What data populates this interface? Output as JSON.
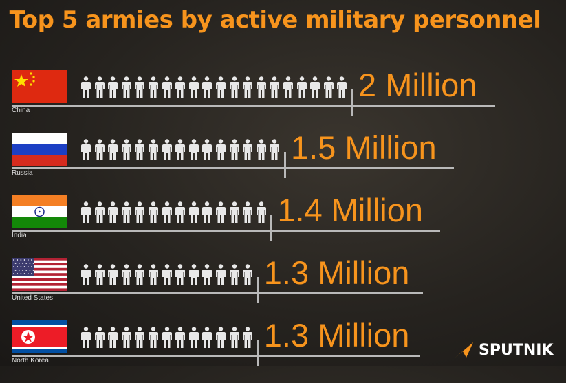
{
  "chart_data": {
    "type": "pictograph",
    "title": "Top 5 armies by active military personnel",
    "unit_per_icon_millions": 0.1,
    "categories": [
      "China",
      "Russia",
      "India",
      "United States",
      "North Korea"
    ],
    "values_millions": [
      2,
      1.5,
      1.4,
      1.3,
      1.3
    ],
    "value_labels": [
      "2 Million",
      "1.5 Million",
      "1.4 Million",
      "1.3 Million",
      "1.3 Million"
    ],
    "colors": {
      "accent": "#f7941d",
      "icon": "#e8e8e8",
      "line": "#b9b9b9"
    }
  },
  "flags": [
    "china-flag",
    "russia-flag",
    "india-flag",
    "united-states-flag",
    "north-korea-flag"
  ],
  "brand": {
    "name": "SPUTNIK"
  }
}
